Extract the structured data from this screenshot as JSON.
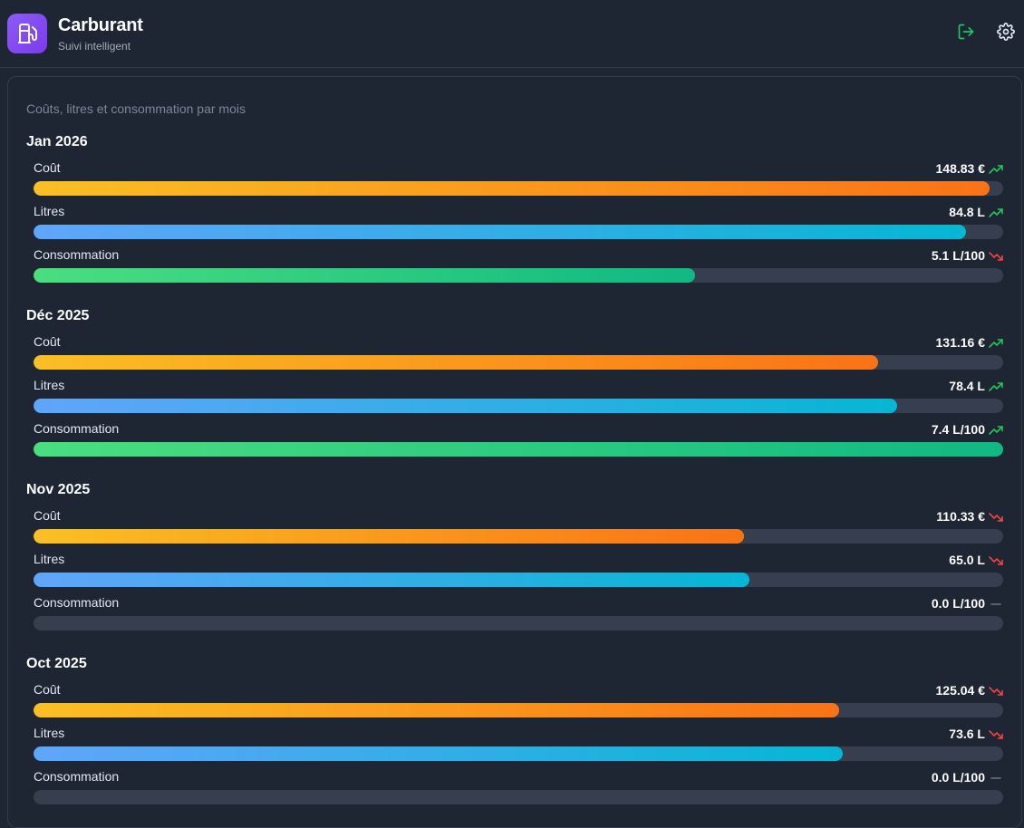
{
  "header": {
    "title": "Carburant",
    "subtitle": "Suivi intelligent",
    "logo_icon": "fuel-pump-icon",
    "logout_icon": "logout-icon",
    "settings_icon": "gear-icon",
    "accent_color": "#8b5cf6"
  },
  "panel": {
    "caption": "Coûts, litres et consommation par mois"
  },
  "colors": {
    "trend_up": "#22c55e",
    "trend_down": "#ef4444",
    "trend_flat": "#6b7280"
  },
  "months": [
    {
      "title": "Jan 2026",
      "metrics": [
        {
          "label": "Coût",
          "value": "148.83 €",
          "trend": "up",
          "fill": 0.986
        },
        {
          "label": "Litres",
          "value": "84.8 L",
          "trend": "up",
          "fill": 0.962
        },
        {
          "label": "Consommation",
          "value": "5.1 L/100",
          "trend": "down",
          "fill": 0.682
        }
      ]
    },
    {
      "title": "Déc 2025",
      "metrics": [
        {
          "label": "Coût",
          "value": "131.16 €",
          "trend": "up",
          "fill": 0.871
        },
        {
          "label": "Litres",
          "value": "78.4 L",
          "trend": "up",
          "fill": 0.891
        },
        {
          "label": "Consommation",
          "value": "7.4 L/100",
          "trend": "up",
          "fill": 1.0
        }
      ]
    },
    {
      "title": "Nov 2025",
      "metrics": [
        {
          "label": "Coût",
          "value": "110.33 €",
          "trend": "down",
          "fill": 0.733
        },
        {
          "label": "Litres",
          "value": "65.0 L",
          "trend": "down",
          "fill": 0.738
        },
        {
          "label": "Consommation",
          "value": "0.0 L/100",
          "trend": "flat",
          "fill": 0
        }
      ]
    },
    {
      "title": "Oct 2025",
      "metrics": [
        {
          "label": "Coût",
          "value": "125.04 €",
          "trend": "down",
          "fill": 0.831
        },
        {
          "label": "Litres",
          "value": "73.6 L",
          "trend": "down",
          "fill": 0.835
        },
        {
          "label": "Consommation",
          "value": "0.0 L/100",
          "trend": "flat",
          "fill": 0
        }
      ]
    }
  ]
}
